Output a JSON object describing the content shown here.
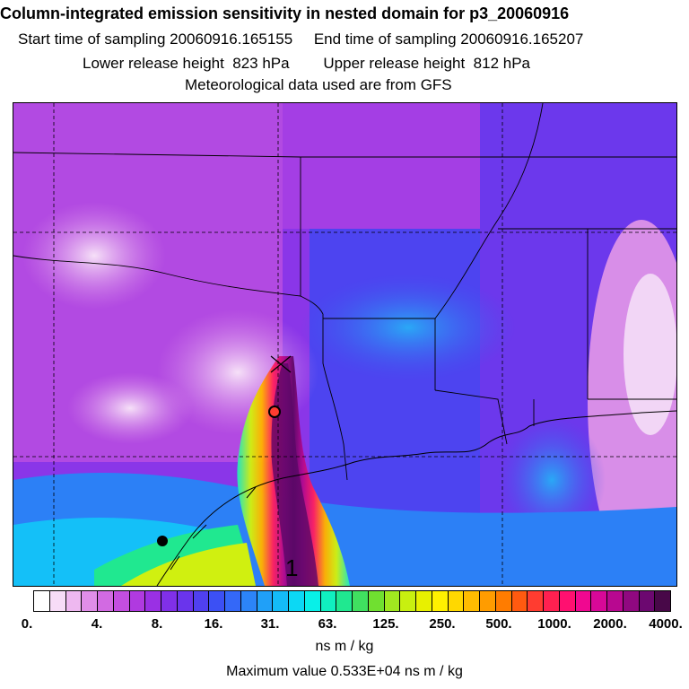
{
  "header": {
    "title": "Column-integrated emission sensitivity in nested domain for p3_20060916",
    "line2": "Start time of sampling 20060916.165155     End time of sampling 20060916.165207",
    "line3": "Lower release height  823 hPa        Upper release height  812 hPa",
    "line4": "Meteorological data used are from GFS"
  },
  "map": {
    "vertical_label": "1"
  },
  "colorbar": {
    "colors": [
      "#ffffff",
      "#f7dcf7",
      "#eeb8f0",
      "#e08ee8",
      "#d26ae2",
      "#c44ee0",
      "#b03ae0",
      "#9a30e4",
      "#8030e8",
      "#6a34ec",
      "#5040f0",
      "#3c50f4",
      "#3468f8",
      "#2c84f8",
      "#20a0f8",
      "#14bcf8",
      "#0cd8f4",
      "#08f0e8",
      "#10f0c0",
      "#20e890",
      "#40e060",
      "#70e030",
      "#a0e820",
      "#c8f010",
      "#e8f000",
      "#fff000",
      "#ffd800",
      "#ffbc00",
      "#ff9c00",
      "#ff7c00",
      "#ff5a10",
      "#ff3c30",
      "#ff2050",
      "#ff1070",
      "#f00890",
      "#d80898",
      "#b80890",
      "#900880",
      "#6c0870",
      "#480848"
    ],
    "tick_labels": [
      "0.",
      "4.",
      "8.",
      "16.",
      "31.",
      "63.",
      "125.",
      "250.",
      "500.",
      "1000.",
      "2000.",
      "4000."
    ],
    "units": "ns m / kg"
  },
  "footer": {
    "max_value": "Maximum value  0.533E+04 ns m / kg"
  }
}
